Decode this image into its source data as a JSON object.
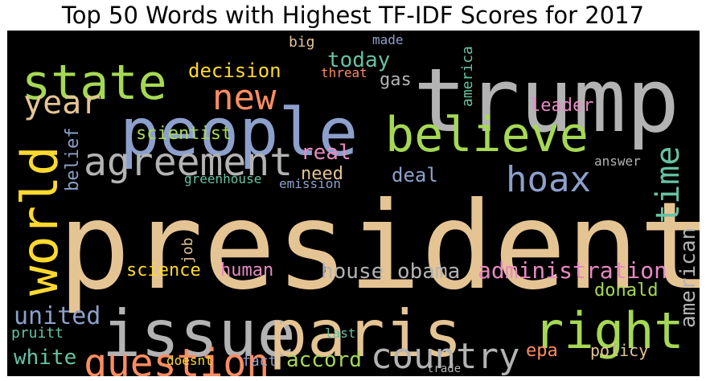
{
  "title": "Top 50 Words with Highest TF-IDF Scores for 2017",
  "words": [
    {
      "text": "president",
      "color": "#e5c494"
    },
    {
      "text": "trump",
      "color": "#b3b3b3"
    },
    {
      "text": "people",
      "color": "#8da0cb"
    },
    {
      "text": "issue",
      "color": "#b3b3b3"
    },
    {
      "text": "paris",
      "color": "#e5c494"
    },
    {
      "text": "state",
      "color": "#a6d854"
    },
    {
      "text": "believe",
      "color": "#a6d854"
    },
    {
      "text": "world",
      "color": "#ffd92f"
    },
    {
      "text": "right",
      "color": "#a6d854"
    },
    {
      "text": "question",
      "color": "#fc8d62"
    },
    {
      "text": "agreement",
      "color": "#b3b3b3"
    },
    {
      "text": "country",
      "color": "#b3b3b3"
    },
    {
      "text": "new",
      "color": "#fc8d62"
    },
    {
      "text": "year",
      "color": "#e5c494"
    },
    {
      "text": "hoax",
      "color": "#8da0cb"
    },
    {
      "text": "time",
      "color": "#66c2a5"
    },
    {
      "text": "administration",
      "color": "#e78ac3"
    },
    {
      "text": "house",
      "color": "#b3b3b3"
    },
    {
      "text": "obama",
      "color": "#b3b3b3"
    },
    {
      "text": "united",
      "color": "#8da0cb"
    },
    {
      "text": "accord",
      "color": "#a6d854"
    },
    {
      "text": "white",
      "color": "#66c2a5"
    },
    {
      "text": "american",
      "color": "#b3b3b3"
    },
    {
      "text": "real",
      "color": "#e78ac3"
    },
    {
      "text": "today",
      "color": "#66c2a5"
    },
    {
      "text": "decision",
      "color": "#ffd92f"
    },
    {
      "text": "deal",
      "color": "#8da0cb"
    },
    {
      "text": "science",
      "color": "#ffd92f"
    },
    {
      "text": "human",
      "color": "#e78ac3"
    },
    {
      "text": "donald",
      "color": "#a6d854"
    },
    {
      "text": "epa",
      "color": "#fc8d62"
    },
    {
      "text": "policy",
      "color": "#e5c494"
    },
    {
      "text": "scientist",
      "color": "#a6d854"
    },
    {
      "text": "leader",
      "color": "#e78ac3"
    },
    {
      "text": "need",
      "color": "#e5c494"
    },
    {
      "text": "belief",
      "color": "#8da0cb"
    },
    {
      "text": "gas",
      "color": "#b3b3b3"
    },
    {
      "text": "america",
      "color": "#66c2a5"
    },
    {
      "text": "job",
      "color": "#e5c494"
    },
    {
      "text": "pruitt",
      "color": "#66c2a5"
    },
    {
      "text": "fact",
      "color": "#8da0cb"
    },
    {
      "text": "big",
      "color": "#e5c494"
    },
    {
      "text": "made",
      "color": "#8da0cb"
    },
    {
      "text": "threat",
      "color": "#fc8d62"
    },
    {
      "text": "greenhouse",
      "color": "#66c2a5"
    },
    {
      "text": "emission",
      "color": "#8da0cb"
    },
    {
      "text": "answer",
      "color": "#b3b3b3"
    },
    {
      "text": "last",
      "color": "#66c2a5"
    },
    {
      "text": "doesnt",
      "color": "#ffd92f"
    },
    {
      "text": "trade",
      "color": "#b3b3b3"
    }
  ]
}
